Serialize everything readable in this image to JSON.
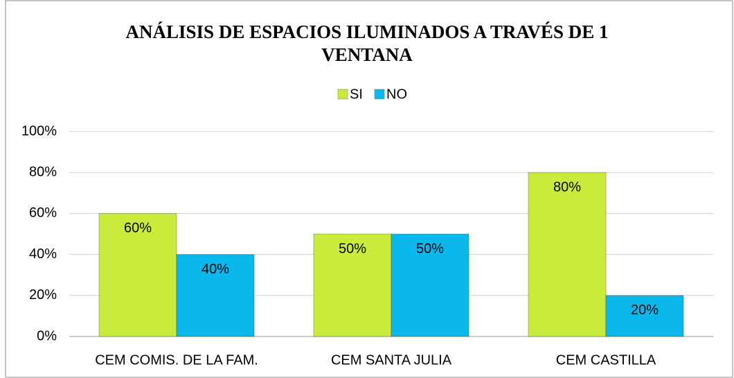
{
  "chart_data": {
    "type": "bar",
    "title": "ANÁLISIS DE ESPACIOS ILUMINADOS A TRAVÉS DE 1 VENTANA",
    "categories": [
      "CEM COMIS. DE LA FAM.",
      "CEM SANTA JULIA",
      "CEM CASTILLA"
    ],
    "series": [
      {
        "name": "SI",
        "color": "#c9ec3c",
        "values": [
          60,
          50,
          80
        ],
        "value_labels": [
          "60%",
          "50%",
          "80%"
        ]
      },
      {
        "name": "NO",
        "color": "#0ab8ec",
        "values": [
          40,
          50,
          20
        ],
        "value_labels": [
          "40%",
          "50%",
          "20%"
        ]
      }
    ],
    "ylim": [
      0,
      100
    ],
    "yticks": [
      {
        "value": 0,
        "label": "0%"
      },
      {
        "value": 20,
        "label": "20%"
      },
      {
        "value": 40,
        "label": "40%"
      },
      {
        "value": 60,
        "label": "60%"
      },
      {
        "value": 80,
        "label": "80%"
      },
      {
        "value": 100,
        "label": "100%"
      }
    ],
    "grid": true,
    "legend": "top"
  }
}
